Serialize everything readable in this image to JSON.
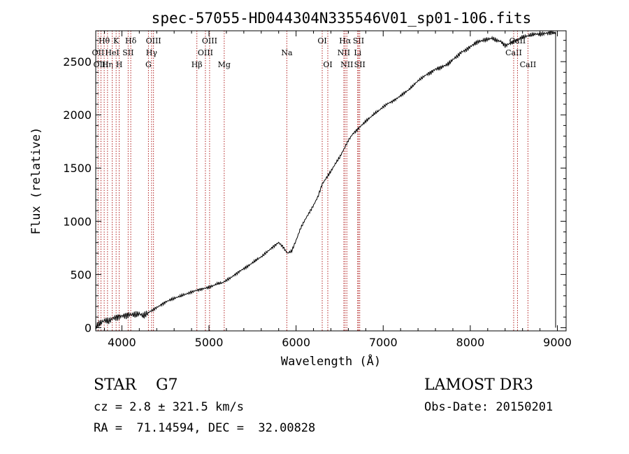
{
  "chart_data": {
    "type": "line",
    "title": "spec-57055-HD044304N335546V01_sp01-106.fits",
    "xlabel": "Wavelength (Å)",
    "ylabel": "Flux (relative)",
    "xlim": [
      3700,
      9100
    ],
    "ylim": [
      -30,
      2790
    ],
    "xticks": [
      4000,
      5000,
      6000,
      7000,
      8000,
      9000
    ],
    "yticks": [
      0,
      500,
      1000,
      1500,
      2000,
      2500
    ],
    "series": [
      {
        "name": "flux",
        "x": [
          3700,
          3750,
          3800,
          3850,
          3900,
          3950,
          4000,
          4050,
          4100,
          4150,
          4200,
          4250,
          4300,
          4350,
          4400,
          4450,
          4500,
          4550,
          4600,
          4650,
          4700,
          4750,
          4800,
          4850,
          4900,
          4950,
          5000,
          5050,
          5100,
          5150,
          5200,
          5250,
          5300,
          5350,
          5400,
          5450,
          5500,
          5550,
          5600,
          5650,
          5700,
          5750,
          5800,
          5850,
          5900,
          5950,
          6000,
          6050,
          6100,
          6150,
          6200,
          6250,
          6300,
          6350,
          6400,
          6450,
          6500,
          6550,
          6600,
          6650,
          6700,
          6750,
          6800,
          6850,
          6900,
          6950,
          7000,
          7050,
          7100,
          7150,
          7200,
          7250,
          7300,
          7350,
          7400,
          7450,
          7500,
          7550,
          7600,
          7650,
          7700,
          7750,
          7800,
          7850,
          7900,
          7950,
          8000,
          8050,
          8100,
          8150,
          8200,
          8250,
          8300,
          8350,
          8400,
          8450,
          8500,
          8550,
          8600,
          8650,
          8700,
          8750,
          8800,
          8850,
          8900,
          8950,
          8980
        ],
        "y": [
          10,
          40,
          70,
          60,
          90,
          100,
          110,
          115,
          125,
          120,
          130,
          110,
          140,
          165,
          190,
          215,
          240,
          260,
          275,
          290,
          305,
          320,
          335,
          350,
          360,
          370,
          380,
          395,
          415,
          420,
          445,
          470,
          500,
          530,
          555,
          580,
          610,
          640,
          665,
          700,
          735,
          770,
          800,
          760,
          700,
          720,
          820,
          930,
          1010,
          1080,
          1150,
          1230,
          1350,
          1410,
          1470,
          1540,
          1600,
          1680,
          1760,
          1820,
          1860,
          1900,
          1940,
          1975,
          2010,
          2040,
          2075,
          2105,
          2125,
          2150,
          2180,
          2210,
          2240,
          2280,
          2320,
          2350,
          2380,
          2400,
          2430,
          2440,
          2460,
          2480,
          2520,
          2550,
          2590,
          2610,
          2640,
          2670,
          2690,
          2700,
          2710,
          2720,
          2700,
          2690,
          2650,
          2670,
          2690,
          2710,
          2730,
          2740,
          2750,
          2760,
          2755,
          2765,
          2770,
          2775,
          2780
        ]
      }
    ],
    "lines": [
      {
        "name": "Hθ",
        "x": 3797,
        "row": 1
      },
      {
        "name": "OII",
        "x": 3727,
        "row": 2
      },
      {
        "name": "OIII",
        "x": 3760,
        "row": 3
      },
      {
        "name": "Hη",
        "x": 3835,
        "row": 3
      },
      {
        "name": "HeI",
        "x": 3889,
        "row": 2
      },
      {
        "name": "K",
        "x": 3934,
        "row": 1
      },
      {
        "name": "H",
        "x": 3969,
        "row": 3
      },
      {
        "name": "SII",
        "x": 4072,
        "row": 2
      },
      {
        "name": "Hδ",
        "x": 4102,
        "row": 1
      },
      {
        "name": "G",
        "x": 4305,
        "row": 3
      },
      {
        "name": "Hγ",
        "x": 4341,
        "row": 2
      },
      {
        "name": "OIII",
        "x": 4363,
        "row": 1
      },
      {
        "name": "Hβ",
        "x": 4861,
        "row": 3
      },
      {
        "name": "OIII",
        "x": 4959,
        "row": 2
      },
      {
        "name": "OIII",
        "x": 5007,
        "row": 1
      },
      {
        "name": "Mg",
        "x": 5175,
        "row": 3
      },
      {
        "name": "Na",
        "x": 5894,
        "row": 2
      },
      {
        "name": "OI",
        "x": 6300,
        "row": 1
      },
      {
        "name": "OI",
        "x": 6364,
        "row": 3
      },
      {
        "name": "NII",
        "x": 6548,
        "row": 2
      },
      {
        "name": "Hα",
        "x": 6563,
        "row": 1
      },
      {
        "name": "NII",
        "x": 6583,
        "row": 3
      },
      {
        "name": "Li",
        "x": 6707,
        "row": 2
      },
      {
        "name": "SII",
        "x": 6717,
        "row": 1
      },
      {
        "name": "SII",
        "x": 6731,
        "row": 3
      },
      {
        "name": "CaII",
        "x": 8498,
        "row": 2
      },
      {
        "name": "CaII",
        "x": 8542,
        "row": 1
      },
      {
        "name": "CaII",
        "x": 8662,
        "row": 3
      }
    ]
  },
  "info": {
    "object_class": "STAR    G7",
    "survey": "LAMOST DR3",
    "redshift": "cz = 2.8 ± 321.5 km/s",
    "obs_date": "Obs-Date: 20150201",
    "coords": "RA =  71.14594, DEC =  32.00828"
  },
  "colors": {
    "spectrum": "#000000",
    "line_markers": "#b22222",
    "axis": "#000000"
  }
}
